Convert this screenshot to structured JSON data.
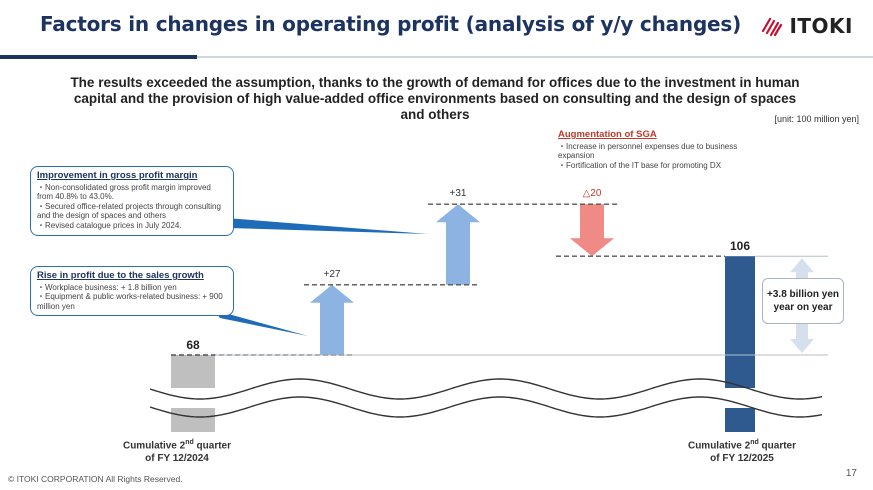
{
  "header": {
    "title": "Factors in changes in operating profit (analysis of y/y changes)",
    "logo_text": "ITOKI"
  },
  "headline": "The results exceeded the assumption, thanks to the growth of demand for offices due to the investment in human capital and the provision of high value-added office environments based on consulting and the design of spaces and others",
  "unit": "[unit: 100 million yen]",
  "chart_data": {
    "type": "bar",
    "subtype": "waterfall",
    "categories": [
      "Cumulative 2nd quarter of FY 12/2024",
      "Rise in profit due to the sales growth",
      "Improvement in gross profit margin",
      "Augmentation of SGA",
      "Cumulative 2nd quarter of FY 12/2025"
    ],
    "values": [
      68,
      27,
      31,
      -20,
      106
    ],
    "labels": [
      "68",
      "+27",
      "+31",
      "△20",
      "106"
    ],
    "colors": {
      "start_bar": "#bfbfbf",
      "increase": "#8db3e2",
      "decrease": "#f08a84",
      "end_bar": "#2e5a8f"
    },
    "broken_axis": true
  },
  "callouts": {
    "sales_growth": {
      "title": "Rise in profit due to the sales growth",
      "lines": [
        "・Workplace business: + 1.8 billion yen",
        "・Equipment & public works-related business: + 900 million yen"
      ]
    },
    "gross_margin": {
      "title": "Improvement in gross profit margin",
      "lines": [
        "・Non-consolidated gross profit margin improved from 40.8% to 43.0%.",
        "・Secured office-related projects through consulting and the design of spaces and others",
        "・Revised catalogue prices in July 2024."
      ]
    },
    "sga": {
      "title": "Augmentation of SGA",
      "lines": [
        "・Increase in personnel expenses due to business expansion",
        "・Fortification of the IT base for promoting DX"
      ]
    }
  },
  "yoy": "+3.8 billion yen year on year",
  "x_labels": {
    "start_line1": "Cumulative 2",
    "start_sup": "nd",
    "start_line1_tail": " quarter",
    "start_line2": "of FY 12/2024",
    "end_line1": "Cumulative 2",
    "end_sup": "nd",
    "end_line1_tail": " quarter",
    "end_line2": "of FY 12/2025"
  },
  "footer": "© ITOKI CORPORATION All Rights Reserved.",
  "page_number": "17"
}
